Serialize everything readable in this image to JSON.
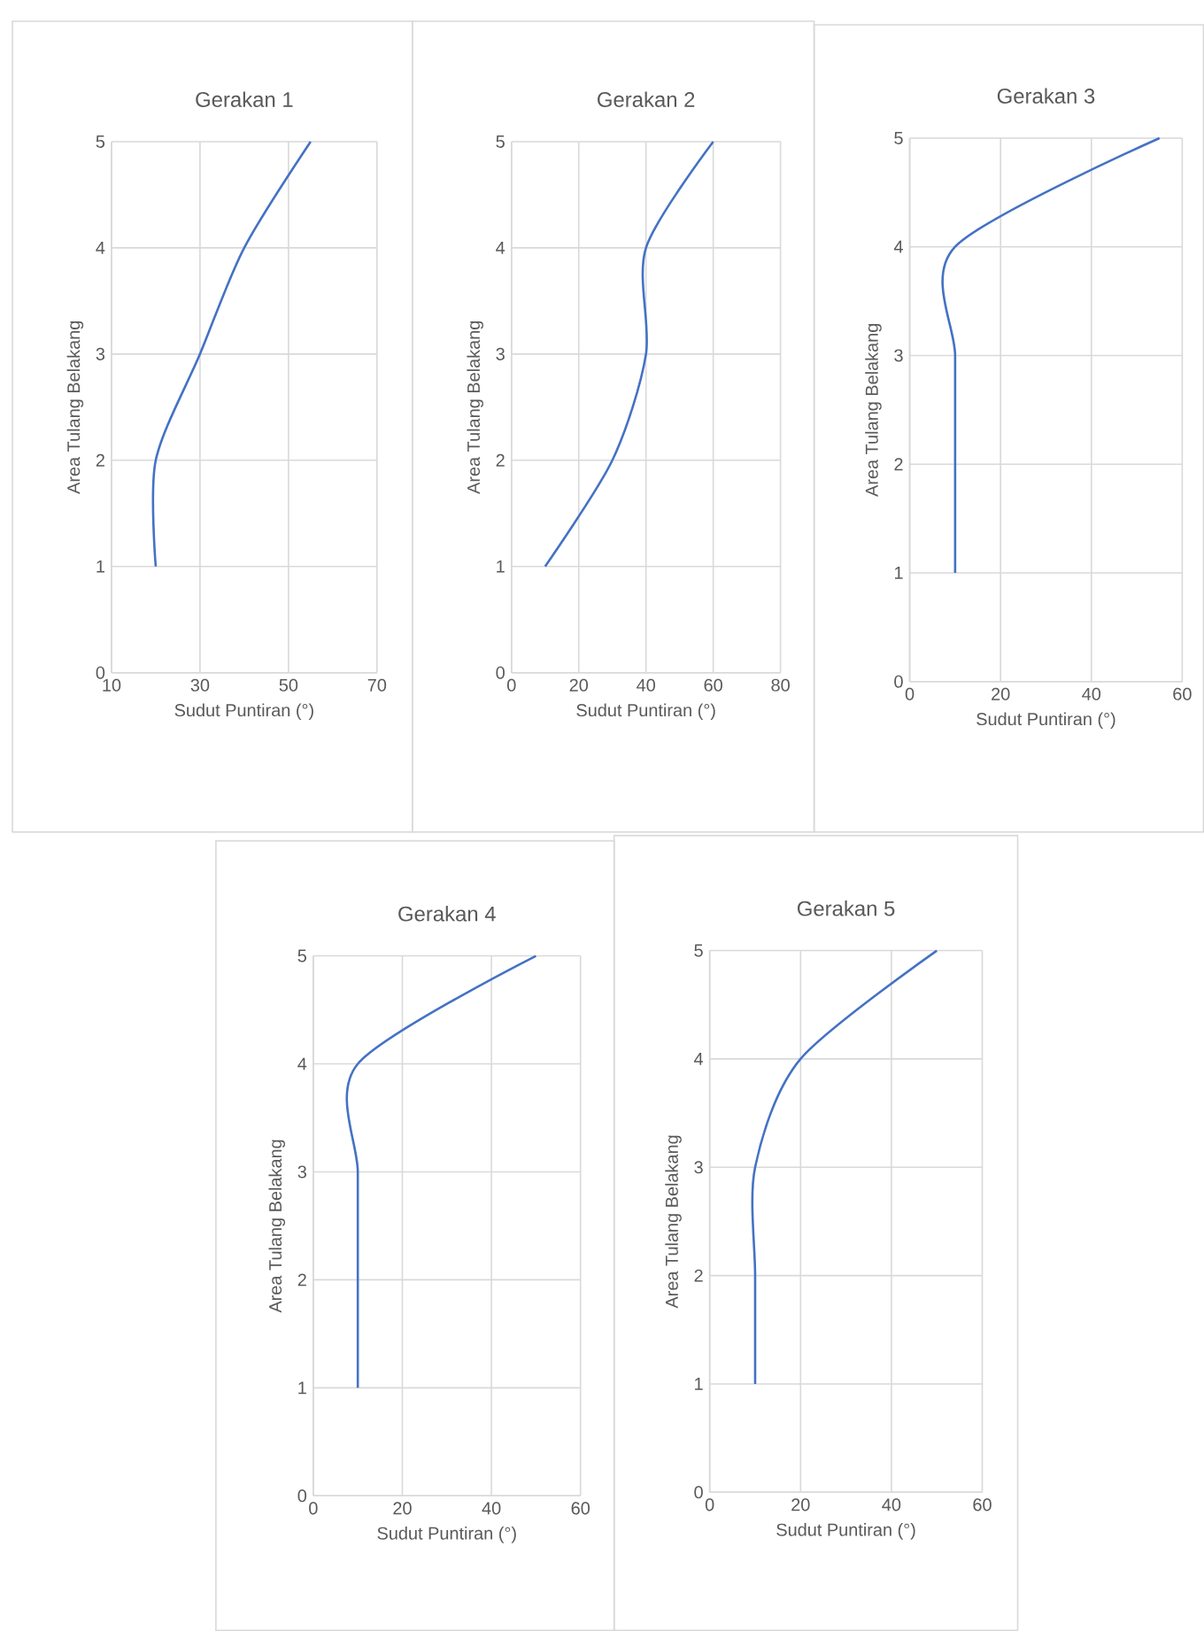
{
  "chart_data": [
    {
      "type": "line",
      "title": "Gerakan 1",
      "xlabel": "Sudut Puntiran (°)",
      "ylabel": "Area Tulang Belakang",
      "x": [
        20,
        20,
        30,
        40,
        55
      ],
      "values": [
        1,
        2,
        3,
        4,
        5
      ],
      "color": "#4472c4",
      "marker": "none",
      "xlim": [
        10,
        70
      ],
      "ylim": [
        0,
        5
      ],
      "xticks": [
        10,
        30,
        50,
        70
      ],
      "yticks": [
        0,
        1,
        2,
        3,
        4,
        5
      ],
      "grid": true
    },
    {
      "type": "line",
      "title": "Gerakan 2",
      "xlabel": "Sudut Puntiran (°)",
      "ylabel": "Area Tulang Belakang",
      "x": [
        10,
        30,
        40,
        40,
        60
      ],
      "values": [
        1,
        2,
        3,
        4,
        5
      ],
      "color": "#4472c4",
      "marker": "none",
      "xlim": [
        0,
        80
      ],
      "ylim": [
        0,
        5
      ],
      "xticks": [
        0,
        20,
        40,
        60,
        80
      ],
      "yticks": [
        0,
        1,
        2,
        3,
        4,
        5
      ],
      "grid": true
    },
    {
      "type": "line",
      "title": "Gerakan 3",
      "xlabel": "Sudut Puntiran (°)",
      "ylabel": "Area Tulang Belakang",
      "x": [
        10,
        10,
        10,
        10,
        55
      ],
      "values": [
        1,
        2,
        3,
        4,
        5
      ],
      "color": "#4472c4",
      "marker": "none",
      "xlim": [
        0,
        60
      ],
      "ylim": [
        0,
        5
      ],
      "xticks": [
        0,
        20,
        40,
        60
      ],
      "yticks": [
        0,
        1,
        2,
        3,
        4,
        5
      ],
      "grid": true
    },
    {
      "type": "line",
      "title": "Gerakan 4",
      "xlabel": "Sudut Puntiran (°)",
      "ylabel": "Area Tulang Belakang",
      "x": [
        10,
        10,
        10,
        10,
        50
      ],
      "values": [
        1,
        2,
        3,
        4,
        5
      ],
      "color": "#4472c4",
      "marker": "none",
      "xlim": [
        0,
        60
      ],
      "ylim": [
        0,
        5
      ],
      "xticks": [
        0,
        20,
        40,
        60
      ],
      "yticks": [
        0,
        1,
        2,
        3,
        4,
        5
      ],
      "grid": true
    },
    {
      "type": "line",
      "title": "Gerakan 5",
      "xlabel": "Sudut Puntiran (°)",
      "ylabel": "Area Tulang Belakang",
      "x": [
        10,
        10,
        10,
        20,
        50
      ],
      "values": [
        1,
        2,
        3,
        4,
        5
      ],
      "color": "#4472c4",
      "marker": "none",
      "xlim": [
        0,
        60
      ],
      "ylim": [
        0,
        5
      ],
      "xticks": [
        0,
        20,
        40,
        60
      ],
      "yticks": [
        0,
        1,
        2,
        3,
        4,
        5
      ],
      "grid": true
    }
  ]
}
